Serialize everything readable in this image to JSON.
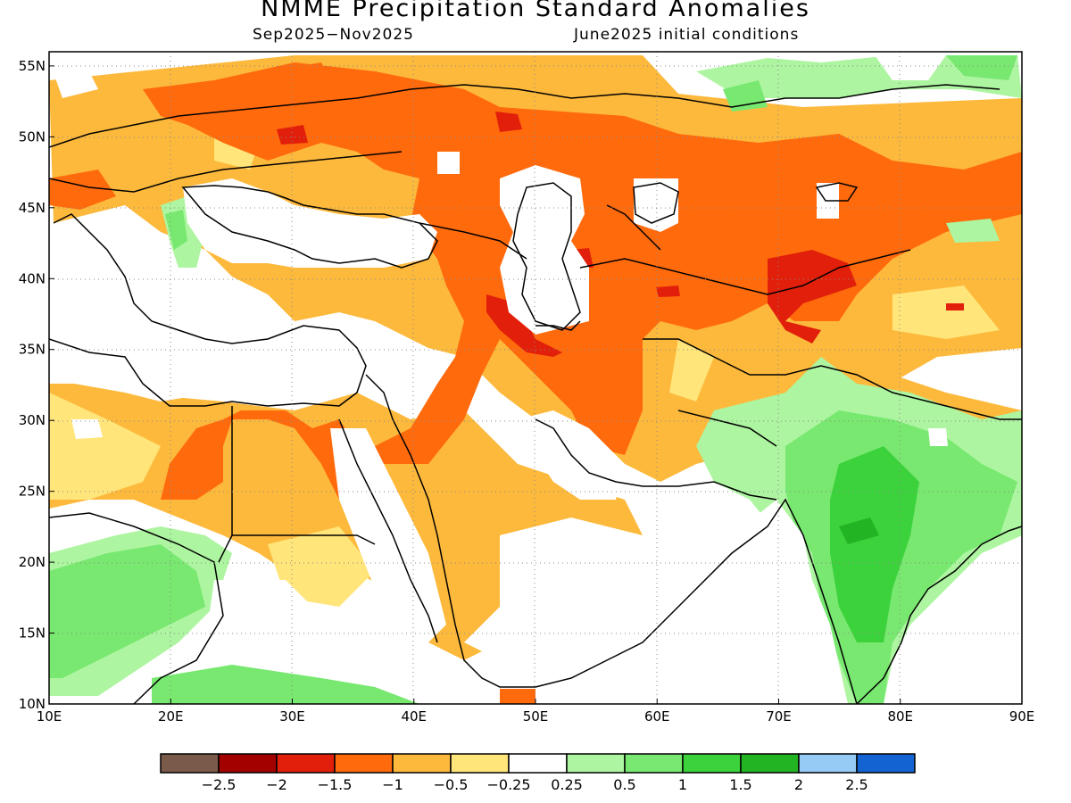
{
  "title": "NMME Precipitation Standard Anomalies",
  "subtitle_left": "Sep2025−Nov2025",
  "subtitle_right": "June2025 initial conditions",
  "map": {
    "lon_range": [
      10,
      90
    ],
    "lat_range": [
      10,
      56
    ],
    "x_ticks": [
      "10E",
      "20E",
      "30E",
      "40E",
      "50E",
      "60E",
      "70E",
      "80E",
      "90E"
    ],
    "y_ticks": [
      "10N",
      "15N",
      "20N",
      "25N",
      "30N",
      "35N",
      "40N",
      "45N",
      "50N",
      "55N"
    ],
    "grid": "dotted"
  },
  "colorbar": {
    "colors": [
      "#7a5a4a",
      "#a30000",
      "#e21f0a",
      "#ff6a0d",
      "#fdb93c",
      "#ffe57a",
      "#ffffff",
      "#adf5a0",
      "#78e870",
      "#3cd23c",
      "#22b422",
      "#96cbf5",
      "#1463d2"
    ],
    "labels": [
      "−2.5",
      "−2",
      "−1.5",
      "−1",
      "−0.5",
      "−0.25",
      "0.25",
      "0.5",
      "1",
      "1.5",
      "2",
      "2.5"
    ]
  }
}
